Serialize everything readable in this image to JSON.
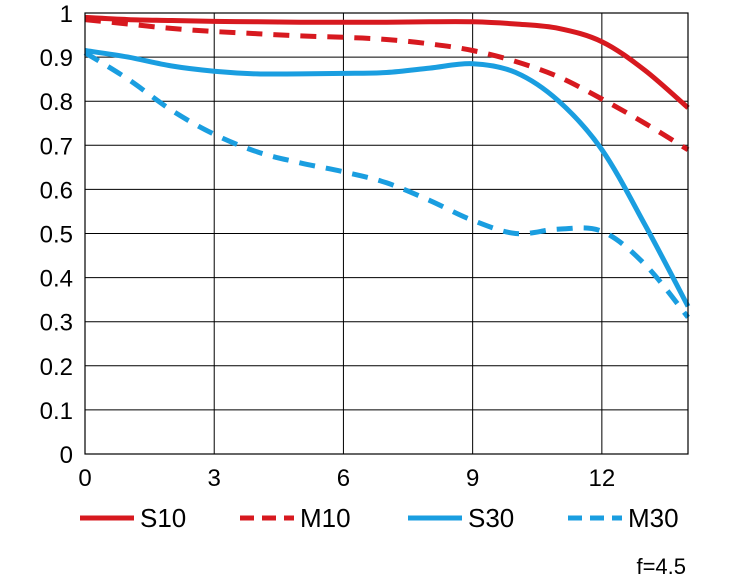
{
  "chart_data": {
    "type": "line",
    "title": "",
    "xlabel": "",
    "ylabel": "",
    "xlim": [
      0,
      14
    ],
    "ylim": [
      0,
      1
    ],
    "x_ticks": [
      0,
      3,
      6,
      9,
      12
    ],
    "x_tick_labels": [
      "0",
      "3",
      "6",
      "9",
      "12"
    ],
    "y_ticks": [
      0,
      0.1,
      0.2,
      0.3,
      0.4,
      0.5,
      0.6,
      0.7,
      0.8,
      0.9,
      1
    ],
    "y_tick_labels": [
      "0",
      "0.1",
      "0.2",
      "0.3",
      "0.4",
      "0.5",
      "0.6",
      "0.7",
      "0.8",
      "0.9",
      "1"
    ],
    "grid": true,
    "legend_position": "bottom",
    "series": [
      {
        "name": "S10",
        "color": "#d7191f",
        "dash": "solid",
        "x": [
          0,
          1,
          2,
          3,
          4,
          5,
          6,
          7,
          8,
          9,
          10,
          11,
          12,
          13,
          14
        ],
        "values": [
          0.99,
          0.985,
          0.983,
          0.981,
          0.98,
          0.979,
          0.979,
          0.979,
          0.98,
          0.98,
          0.975,
          0.965,
          0.935,
          0.87,
          0.785
        ]
      },
      {
        "name": "M10",
        "color": "#d7191f",
        "dash": "dashed",
        "x": [
          0,
          1,
          2,
          3,
          4,
          5,
          6,
          7,
          8,
          9,
          10,
          11,
          12,
          13,
          14
        ],
        "values": [
          0.985,
          0.975,
          0.965,
          0.958,
          0.953,
          0.948,
          0.945,
          0.94,
          0.93,
          0.915,
          0.89,
          0.855,
          0.805,
          0.75,
          0.69
        ]
      },
      {
        "name": "S30",
        "color": "#1a9ee0",
        "dash": "solid",
        "x": [
          0,
          1,
          2,
          3,
          4,
          5,
          6,
          7,
          8,
          9,
          10,
          11,
          12,
          13,
          14
        ],
        "values": [
          0.915,
          0.9,
          0.88,
          0.868,
          0.862,
          0.862,
          0.863,
          0.865,
          0.875,
          0.885,
          0.865,
          0.8,
          0.69,
          0.52,
          0.335
        ]
      },
      {
        "name": "M30",
        "color": "#1a9ee0",
        "dash": "dashed",
        "x": [
          0,
          1,
          2,
          3,
          4,
          5,
          6,
          7,
          8,
          9,
          10,
          11,
          12,
          13,
          14
        ],
        "values": [
          0.91,
          0.85,
          0.78,
          0.725,
          0.685,
          0.66,
          0.64,
          0.615,
          0.575,
          0.53,
          0.5,
          0.51,
          0.505,
          0.43,
          0.31
        ]
      }
    ],
    "annotation": "f=4.5"
  }
}
